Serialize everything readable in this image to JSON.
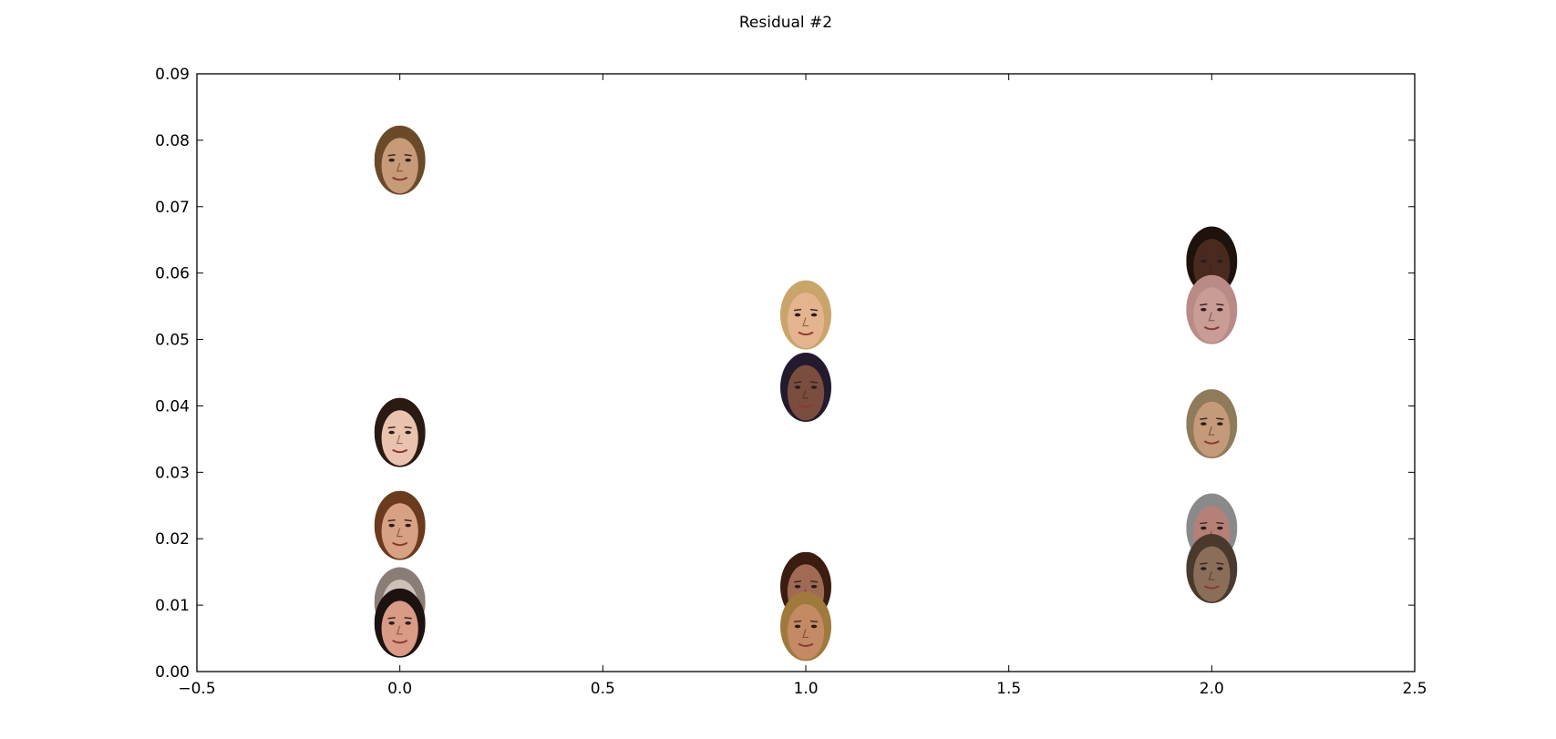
{
  "chart_data": {
    "type": "scatter",
    "title": "Residual #2",
    "xlabel": "",
    "ylabel": "",
    "xlim": [
      -0.5,
      2.5
    ],
    "ylim": [
      0.0,
      0.09
    ],
    "x_ticks": [
      "−0.5",
      "0.0",
      "0.5",
      "1.0",
      "1.5",
      "2.0",
      "2.5"
    ],
    "y_ticks": [
      "0.00",
      "0.01",
      "0.02",
      "0.03",
      "0.04",
      "0.05",
      "0.06",
      "0.07",
      "0.08",
      "0.09"
    ],
    "grid": false,
    "legend": "none",
    "marker": "face-thumbnail",
    "points": [
      {
        "x": 0.0,
        "y": 0.077,
        "skin": "#c79a78",
        "hair": "#6b4a2a"
      },
      {
        "x": 0.0,
        "y": 0.036,
        "skin": "#e9c3ad",
        "hair": "#2a1a14"
      },
      {
        "x": 0.0,
        "y": 0.022,
        "skin": "#d9a184",
        "hair": "#6a3b1e"
      },
      {
        "x": 0.0,
        "y": 0.0105,
        "skin": "#cfc1b8",
        "hair": "#8a7d76"
      },
      {
        "x": 0.0,
        "y": 0.0073,
        "skin": "#d99a86",
        "hair": "#1c1210"
      },
      {
        "x": 1.0,
        "y": 0.0537,
        "skin": "#e4b48f",
        "hair": "#c9a56a"
      },
      {
        "x": 1.0,
        "y": 0.0428,
        "skin": "#7b4d3f",
        "hair": "#231a2e"
      },
      {
        "x": 1.0,
        "y": 0.0128,
        "skin": "#a06a55",
        "hair": "#3a1d10"
      },
      {
        "x": 1.0,
        "y": 0.0068,
        "skin": "#c48a63",
        "hair": "#a07a3c"
      },
      {
        "x": 2.0,
        "y": 0.0618,
        "skin": "#4a2a1e",
        "hair": "#1e120c"
      },
      {
        "x": 2.0,
        "y": 0.0545,
        "skin": "#c99c96",
        "hair": "#b98a86"
      },
      {
        "x": 2.0,
        "y": 0.0373,
        "skin": "#c49a7a",
        "hair": "#8f7a5a"
      },
      {
        "x": 2.0,
        "y": 0.0216,
        "skin": "#b58078",
        "hair": "#8a8a8a"
      },
      {
        "x": 2.0,
        "y": 0.0155,
        "skin": "#8a6e5a",
        "hair": "#4a3a2e"
      }
    ]
  }
}
